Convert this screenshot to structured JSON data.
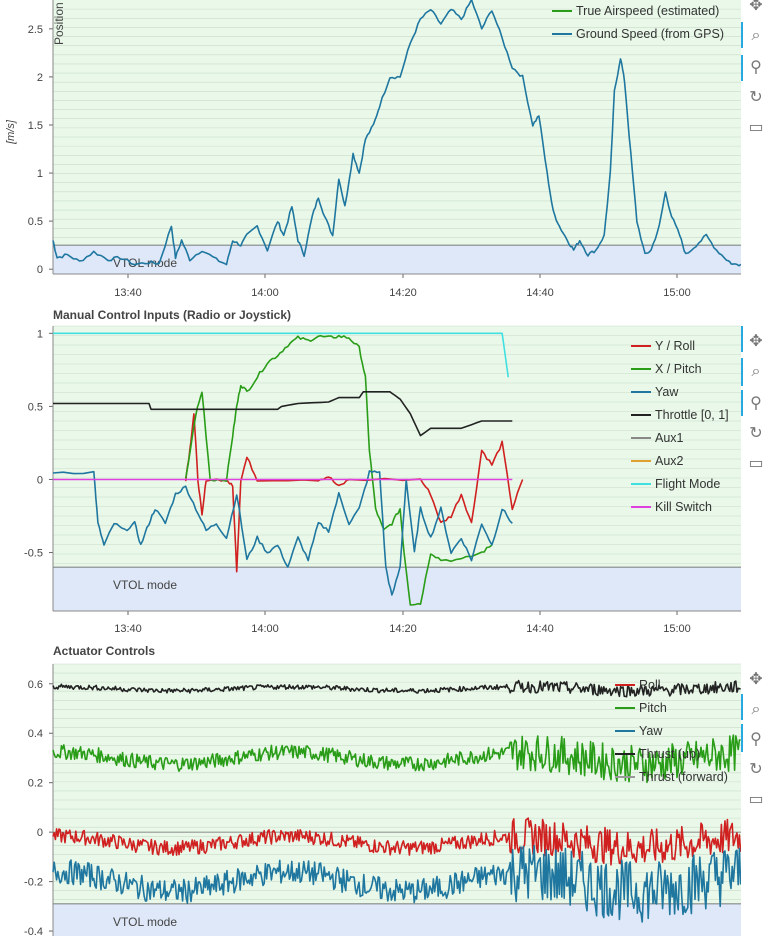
{
  "colors": {
    "plot_bg": "#e9f8e9",
    "vtol_band": "#dfe8f8",
    "grid": "#c9dcc9",
    "legend_bg": "#ffffff"
  },
  "toolbar_icons": [
    "pan-icon",
    "box-zoom-icon",
    "wheel-zoom-icon",
    "reset-icon",
    "save-icon"
  ],
  "chart_data": [
    {
      "type": "line",
      "title": "",
      "overlay_label": "Position",
      "ylabel": "[m/s]",
      "ylim": [
        -0.05,
        2.8
      ],
      "xlim_min": [
        13.2,
        15.1
      ],
      "yticks": [
        "0",
        "0.5",
        "1",
        "1.5",
        "2",
        "2.5"
      ],
      "xticks": [
        "13:40",
        "14:00",
        "14:20",
        "14:40",
        "15:00"
      ],
      "band": {
        "label": "VTOL mode",
        "y_max": 0.25
      },
      "legend_position": "top-right",
      "series": [
        {
          "name": "True Airspeed (estimated)",
          "color": "#2a9d18",
          "points": []
        },
        {
          "name": "Ground Speed (from GPS)",
          "color": "#1f77a0",
          "points": [
            [
              13.2,
              0.3
            ],
            [
              13.22,
              0.12
            ],
            [
              13.27,
              0.15
            ],
            [
              13.33,
              0.08
            ],
            [
              13.4,
              0.18
            ],
            [
              13.47,
              0.1
            ],
            [
              13.53,
              0.12
            ],
            [
              13.6,
              0.05
            ],
            [
              13.67,
              0.07
            ],
            [
              13.72,
              0.06
            ],
            [
              13.78,
              0.45
            ],
            [
              13.8,
              0.12
            ],
            [
              13.83,
              0.3
            ],
            [
              13.87,
              0.1
            ],
            [
              13.93,
              0.2
            ],
            [
              14.0,
              0.1
            ],
            [
              14.05,
              0.05
            ],
            [
              14.08,
              0.3
            ],
            [
              14.12,
              0.25
            ],
            [
              14.15,
              0.35
            ],
            [
              14.2,
              0.45
            ],
            [
              14.25,
              0.2
            ],
            [
              14.3,
              0.5
            ],
            [
              14.33,
              0.35
            ],
            [
              14.37,
              0.65
            ],
            [
              14.4,
              0.3
            ],
            [
              14.43,
              0.15
            ],
            [
              14.47,
              0.55
            ],
            [
              14.5,
              0.75
            ],
            [
              14.53,
              0.55
            ],
            [
              14.57,
              0.35
            ],
            [
              14.6,
              0.95
            ],
            [
              14.63,
              0.65
            ],
            [
              14.67,
              1.2
            ],
            [
              14.7,
              1.0
            ],
            [
              14.73,
              1.35
            ],
            [
              14.77,
              1.5
            ],
            [
              14.8,
              1.7
            ],
            [
              14.85,
              2.0
            ],
            [
              14.9,
              2.0
            ],
            [
              14.95,
              2.35
            ],
            [
              15.0,
              2.6
            ],
            [
              15.05,
              2.7
            ],
            [
              15.1,
              2.55
            ],
            [
              15.15,
              2.7
            ],
            [
              15.2,
              2.6
            ],
            [
              15.25,
              2.8
            ],
            [
              15.3,
              2.5
            ],
            [
              15.35,
              2.7
            ],
            [
              15.4,
              2.4
            ],
            [
              15.45,
              2.1
            ],
            [
              15.5,
              2.0
            ],
            [
              15.55,
              1.5
            ],
            [
              15.58,
              1.6
            ],
            [
              15.62,
              1.0
            ],
            [
              15.65,
              0.6
            ],
            [
              15.68,
              0.45
            ],
            [
              15.72,
              0.3
            ],
            [
              15.75,
              0.2
            ],
            [
              15.78,
              0.3
            ],
            [
              15.82,
              0.15
            ],
            [
              15.86,
              0.2
            ],
            [
              15.9,
              0.35
            ],
            [
              15.93,
              1.0
            ],
            [
              15.95,
              1.85
            ],
            [
              15.98,
              2.2
            ],
            [
              16.0,
              1.95
            ],
            [
              16.03,
              1.2
            ],
            [
              16.06,
              0.5
            ],
            [
              16.1,
              0.15
            ],
            [
              16.13,
              0.2
            ],
            [
              16.17,
              0.45
            ],
            [
              16.2,
              0.8
            ],
            [
              16.23,
              0.55
            ],
            [
              16.27,
              0.35
            ],
            [
              16.3,
              0.15
            ],
            [
              16.35,
              0.25
            ],
            [
              16.4,
              0.35
            ],
            [
              16.45,
              0.2
            ],
            [
              16.5,
              0.1
            ],
            [
              16.53,
              0.05
            ],
            [
              16.57,
              0.05
            ]
          ]
        }
      ]
    },
    {
      "type": "line",
      "title": "Manual Control Inputs (Radio or Joystick)",
      "ylim": [
        -0.9,
        1.05
      ],
      "yticks": [
        "-0.5",
        "0",
        "0.5",
        "1"
      ],
      "xticks": [
        "13:40",
        "14:00",
        "14:20",
        "14:40",
        "15:00"
      ],
      "band": {
        "label": "VTOL mode",
        "y_max": -0.6
      },
      "legend_position": "top-right",
      "series": [
        {
          "name": "Y / Roll",
          "color": "#d02020",
          "points": [
            [
              13.85,
              0.0
            ],
            [
              13.87,
              0.2
            ],
            [
              13.89,
              0.45
            ],
            [
              13.91,
              0.0
            ],
            [
              13.93,
              -0.25
            ],
            [
              13.95,
              0.0
            ],
            [
              14.05,
              0.0
            ],
            [
              14.08,
              -0.05
            ],
            [
              14.1,
              -0.62
            ],
            [
              14.12,
              0.0
            ],
            [
              14.15,
              0.15
            ],
            [
              14.2,
              0.0
            ],
            [
              14.5,
              0.0
            ],
            [
              14.55,
              0.02
            ],
            [
              14.6,
              -0.05
            ],
            [
              14.65,
              0.0
            ],
            [
              15.0,
              0.0
            ],
            [
              15.05,
              -0.1
            ],
            [
              15.1,
              -0.3
            ],
            [
              15.15,
              -0.25
            ],
            [
              15.2,
              -0.1
            ],
            [
              15.25,
              -0.3
            ],
            [
              15.3,
              0.2
            ],
            [
              15.35,
              0.1
            ],
            [
              15.4,
              0.25
            ],
            [
              15.45,
              -0.2
            ],
            [
              15.5,
              0.0
            ]
          ]
        },
        {
          "name": "X / Pitch",
          "color": "#2a9d18",
          "points": [
            [
              13.85,
              0.0
            ],
            [
              13.9,
              0.45
            ],
            [
              13.93,
              0.6
            ],
            [
              13.97,
              0.0
            ],
            [
              14.05,
              0.0
            ],
            [
              14.08,
              0.3
            ],
            [
              14.1,
              0.5
            ],
            [
              14.12,
              0.65
            ],
            [
              14.15,
              0.6
            ],
            [
              14.2,
              0.7
            ],
            [
              14.25,
              0.8
            ],
            [
              14.3,
              0.85
            ],
            [
              14.35,
              0.92
            ],
            [
              14.4,
              0.97
            ],
            [
              14.45,
              0.95
            ],
            [
              14.5,
              0.98
            ],
            [
              14.55,
              0.97
            ],
            [
              14.6,
              0.98
            ],
            [
              14.65,
              0.97
            ],
            [
              14.7,
              0.9
            ],
            [
              14.73,
              0.7
            ],
            [
              14.75,
              0.2
            ],
            [
              14.78,
              -0.2
            ],
            [
              14.82,
              -0.35
            ],
            [
              14.86,
              -0.3
            ],
            [
              14.9,
              -0.2
            ],
            [
              14.92,
              -0.5
            ],
            [
              14.95,
              -0.85
            ],
            [
              15.0,
              -0.85
            ],
            [
              15.05,
              -0.5
            ],
            [
              15.1,
              -0.55
            ],
            [
              15.2,
              -0.55
            ],
            [
              15.3,
              -0.5
            ],
            [
              15.35,
              -0.45
            ]
          ]
        },
        {
          "name": "Yaw",
          "color": "#1f77a0",
          "points": [
            [
              13.2,
              0.05
            ],
            [
              13.4,
              0.05
            ],
            [
              13.42,
              -0.3
            ],
            [
              13.45,
              -0.45
            ],
            [
              13.5,
              -0.3
            ],
            [
              13.55,
              -0.35
            ],
            [
              13.6,
              -0.3
            ],
            [
              13.63,
              -0.45
            ],
            [
              13.67,
              -0.3
            ],
            [
              13.7,
              -0.2
            ],
            [
              13.75,
              -0.3
            ],
            [
              13.8,
              -0.1
            ],
            [
              13.85,
              -0.05
            ],
            [
              13.9,
              -0.2
            ],
            [
              13.95,
              -0.35
            ],
            [
              14.0,
              -0.3
            ],
            [
              14.05,
              -0.4
            ],
            [
              14.1,
              -0.1
            ],
            [
              14.15,
              -0.55
            ],
            [
              14.2,
              -0.4
            ],
            [
              14.25,
              -0.5
            ],
            [
              14.3,
              -0.45
            ],
            [
              14.35,
              -0.6
            ],
            [
              14.4,
              -0.4
            ],
            [
              14.45,
              -0.55
            ],
            [
              14.5,
              -0.3
            ],
            [
              14.55,
              -0.35
            ],
            [
              14.6,
              -0.1
            ],
            [
              14.65,
              -0.3
            ],
            [
              14.7,
              -0.2
            ],
            [
              14.75,
              0.05
            ],
            [
              14.8,
              0.05
            ],
            [
              14.83,
              -0.6
            ],
            [
              14.86,
              -0.8
            ],
            [
              14.9,
              -0.6
            ],
            [
              14.93,
              0.0
            ],
            [
              14.97,
              -0.5
            ],
            [
              15.0,
              -0.2
            ],
            [
              15.05,
              -0.4
            ],
            [
              15.1,
              -0.2
            ],
            [
              15.15,
              -0.5
            ],
            [
              15.2,
              -0.4
            ],
            [
              15.25,
              -0.55
            ],
            [
              15.3,
              -0.3
            ],
            [
              15.35,
              -0.45
            ],
            [
              15.4,
              -0.2
            ],
            [
              15.45,
              -0.3
            ]
          ]
        },
        {
          "name": "Throttle [0, 1]",
          "color": "#222222",
          "points": [
            [
              13.2,
              0.52
            ],
            [
              13.67,
              0.52
            ],
            [
              13.68,
              0.48
            ],
            [
              14.3,
              0.48
            ],
            [
              14.32,
              0.5
            ],
            [
              14.4,
              0.52
            ],
            [
              14.55,
              0.53
            ],
            [
              14.6,
              0.56
            ],
            [
              14.7,
              0.56
            ],
            [
              14.72,
              0.6
            ],
            [
              14.85,
              0.6
            ],
            [
              14.9,
              0.55
            ],
            [
              14.95,
              0.45
            ],
            [
              15.0,
              0.3
            ],
            [
              15.05,
              0.35
            ],
            [
              15.2,
              0.35
            ],
            [
              15.3,
              0.4
            ],
            [
              15.45,
              0.4
            ]
          ]
        },
        {
          "name": "Aux1",
          "color": "#888888",
          "points": []
        },
        {
          "name": "Aux2",
          "color": "#e0a030",
          "points": []
        },
        {
          "name": "Flight Mode",
          "color": "#40e0e0",
          "points": [
            [
              13.2,
              1.0
            ],
            [
              15.4,
              1.0
            ],
            [
              15.43,
              0.7
            ]
          ]
        },
        {
          "name": "Kill Switch",
          "color": "#e040e0",
          "points": [
            [
              13.2,
              0.0
            ],
            [
              15.45,
              0.0
            ]
          ]
        }
      ]
    },
    {
      "type": "line",
      "title": "Actuator Controls",
      "ylim": [
        -0.42,
        0.68
      ],
      "yticks": [
        "-0.4",
        "-0.2",
        "0",
        "0.2",
        "0.4",
        "0.6"
      ],
      "band": {
        "label": "VTOL mode",
        "y_max": -0.29
      },
      "legend_position": "top-right",
      "series": [
        {
          "name": "Roll",
          "color": "#d02020",
          "level": -0.04,
          "noise": 0.03
        },
        {
          "name": "Pitch",
          "color": "#2a9d18",
          "level": 0.3,
          "noise": 0.03
        },
        {
          "name": "Yaw",
          "color": "#1f77a0",
          "level": -0.2,
          "noise": 0.05
        },
        {
          "name": "Thrust (up)",
          "color": "#222222",
          "level": 0.58,
          "noise": 0.01
        },
        {
          "name": "Thrust (forward)",
          "color": "#999999",
          "level": 0.0,
          "noise": 0.0
        }
      ]
    }
  ]
}
